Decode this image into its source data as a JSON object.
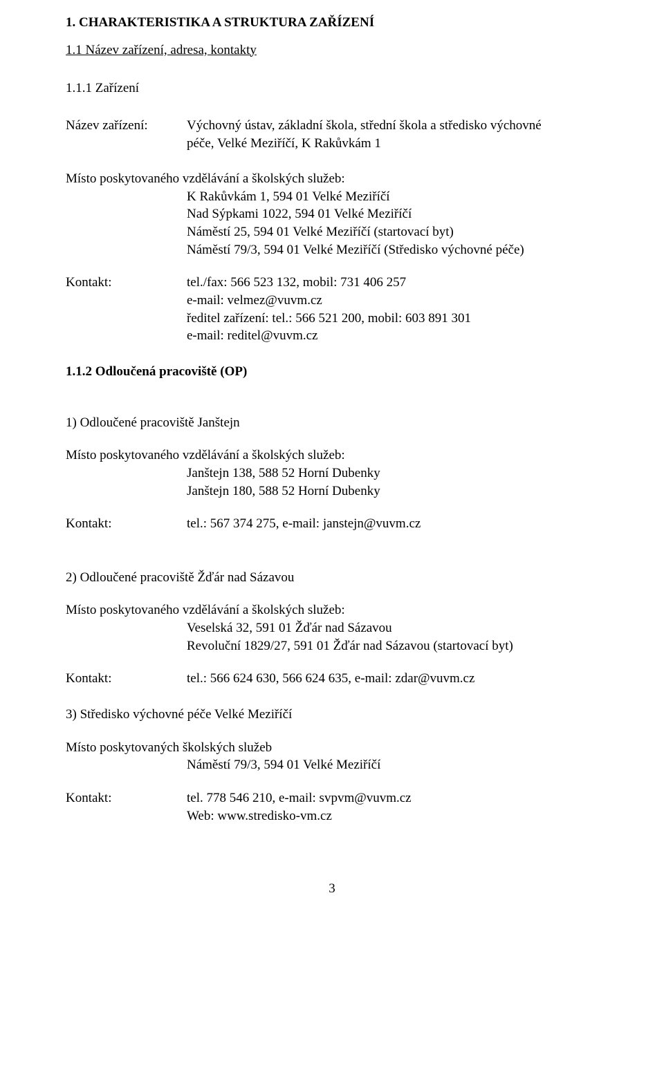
{
  "colors": {
    "text": "#000000",
    "background": "#ffffff",
    "link": "#000000"
  },
  "typography": {
    "family": "Times New Roman",
    "base_size_pt": 14,
    "heading_weight": "bold"
  },
  "h1": "1.  CHARAKTERISTIKA A STRUKTURA ZAŘÍZENÍ",
  "h2": "1.1  Název zařízení, adresa, kontakty",
  "h3": "1.1.1  Zařízení",
  "fac": {
    "label": "Název zařízení:",
    "line1": "Výchovný ústav, základní škola, střední škola a středisko výchovné",
    "line2": "péče, Velké Meziříčí, K Rakůvkám 1"
  },
  "misto_label": "Místo poskytovaného vzdělávání a školských služeb:",
  "misto1": {
    "l1": "K Rakůvkám 1, 594 01 Velké Meziříčí",
    "l2": "Nad Sýpkami 1022, 594 01 Velké Meziříčí",
    "l3": "Náměstí 25, 594 01 Velké Meziříčí (startovací byt)",
    "l4": "Náměstí 79/3, 594 01 Velké Meziříčí (Středisko výchovné péče)"
  },
  "kontakt_label": "Kontakt:",
  "kontakt1": {
    "l1": "tel./fax: 566 523 132, mobil: 731 406 257",
    "l2": "e-mail: velmez@vuvm.cz",
    "l3": "ředitel zařízení: tel.: 566 521 200, mobil: 603 891 301",
    "l4": "e-mail: reditel@vuvm.cz"
  },
  "h3b": "1.1.2  Odloučená pracoviště (OP)",
  "op1": {
    "title": "1)  Odloučené pracoviště Janštejn",
    "l1": "Janštejn 138, 588 52 Horní Dubenky",
    "l2": "Janštejn 180, 588 52 Horní Dubenky",
    "kontakt": "tel.: 567 374 275, e-mail: janstejn@vuvm.cz"
  },
  "op2": {
    "title": " 2)  Odloučené pracoviště Žďár nad Sázavou",
    "l1": "Veselská 32, 591 01 Žďár nad Sázavou",
    "l2_pre": "Revoluční 1829/27, 591 01 Žďár nad Sázavou (startovací byt)",
    "kontakt_pre": "tel.:  566 624 630, 566 624 635, e-mail: ",
    "kontakt_link": "zdar@vuvm.cz"
  },
  "op3": {
    "title": "3)  Středisko výchovné péče Velké Meziříčí",
    "misto_label": "Místo poskytovaných školských služeb",
    "l1": "Náměstí 79/3, 594 01 Velké Meziříčí",
    "kontakt_l1": "tel. 778 546 210, e-mail: svpvm@vuvm.cz",
    "kontakt_l2": "Web: www.stredisko-vm.cz"
  },
  "page_number": "3"
}
